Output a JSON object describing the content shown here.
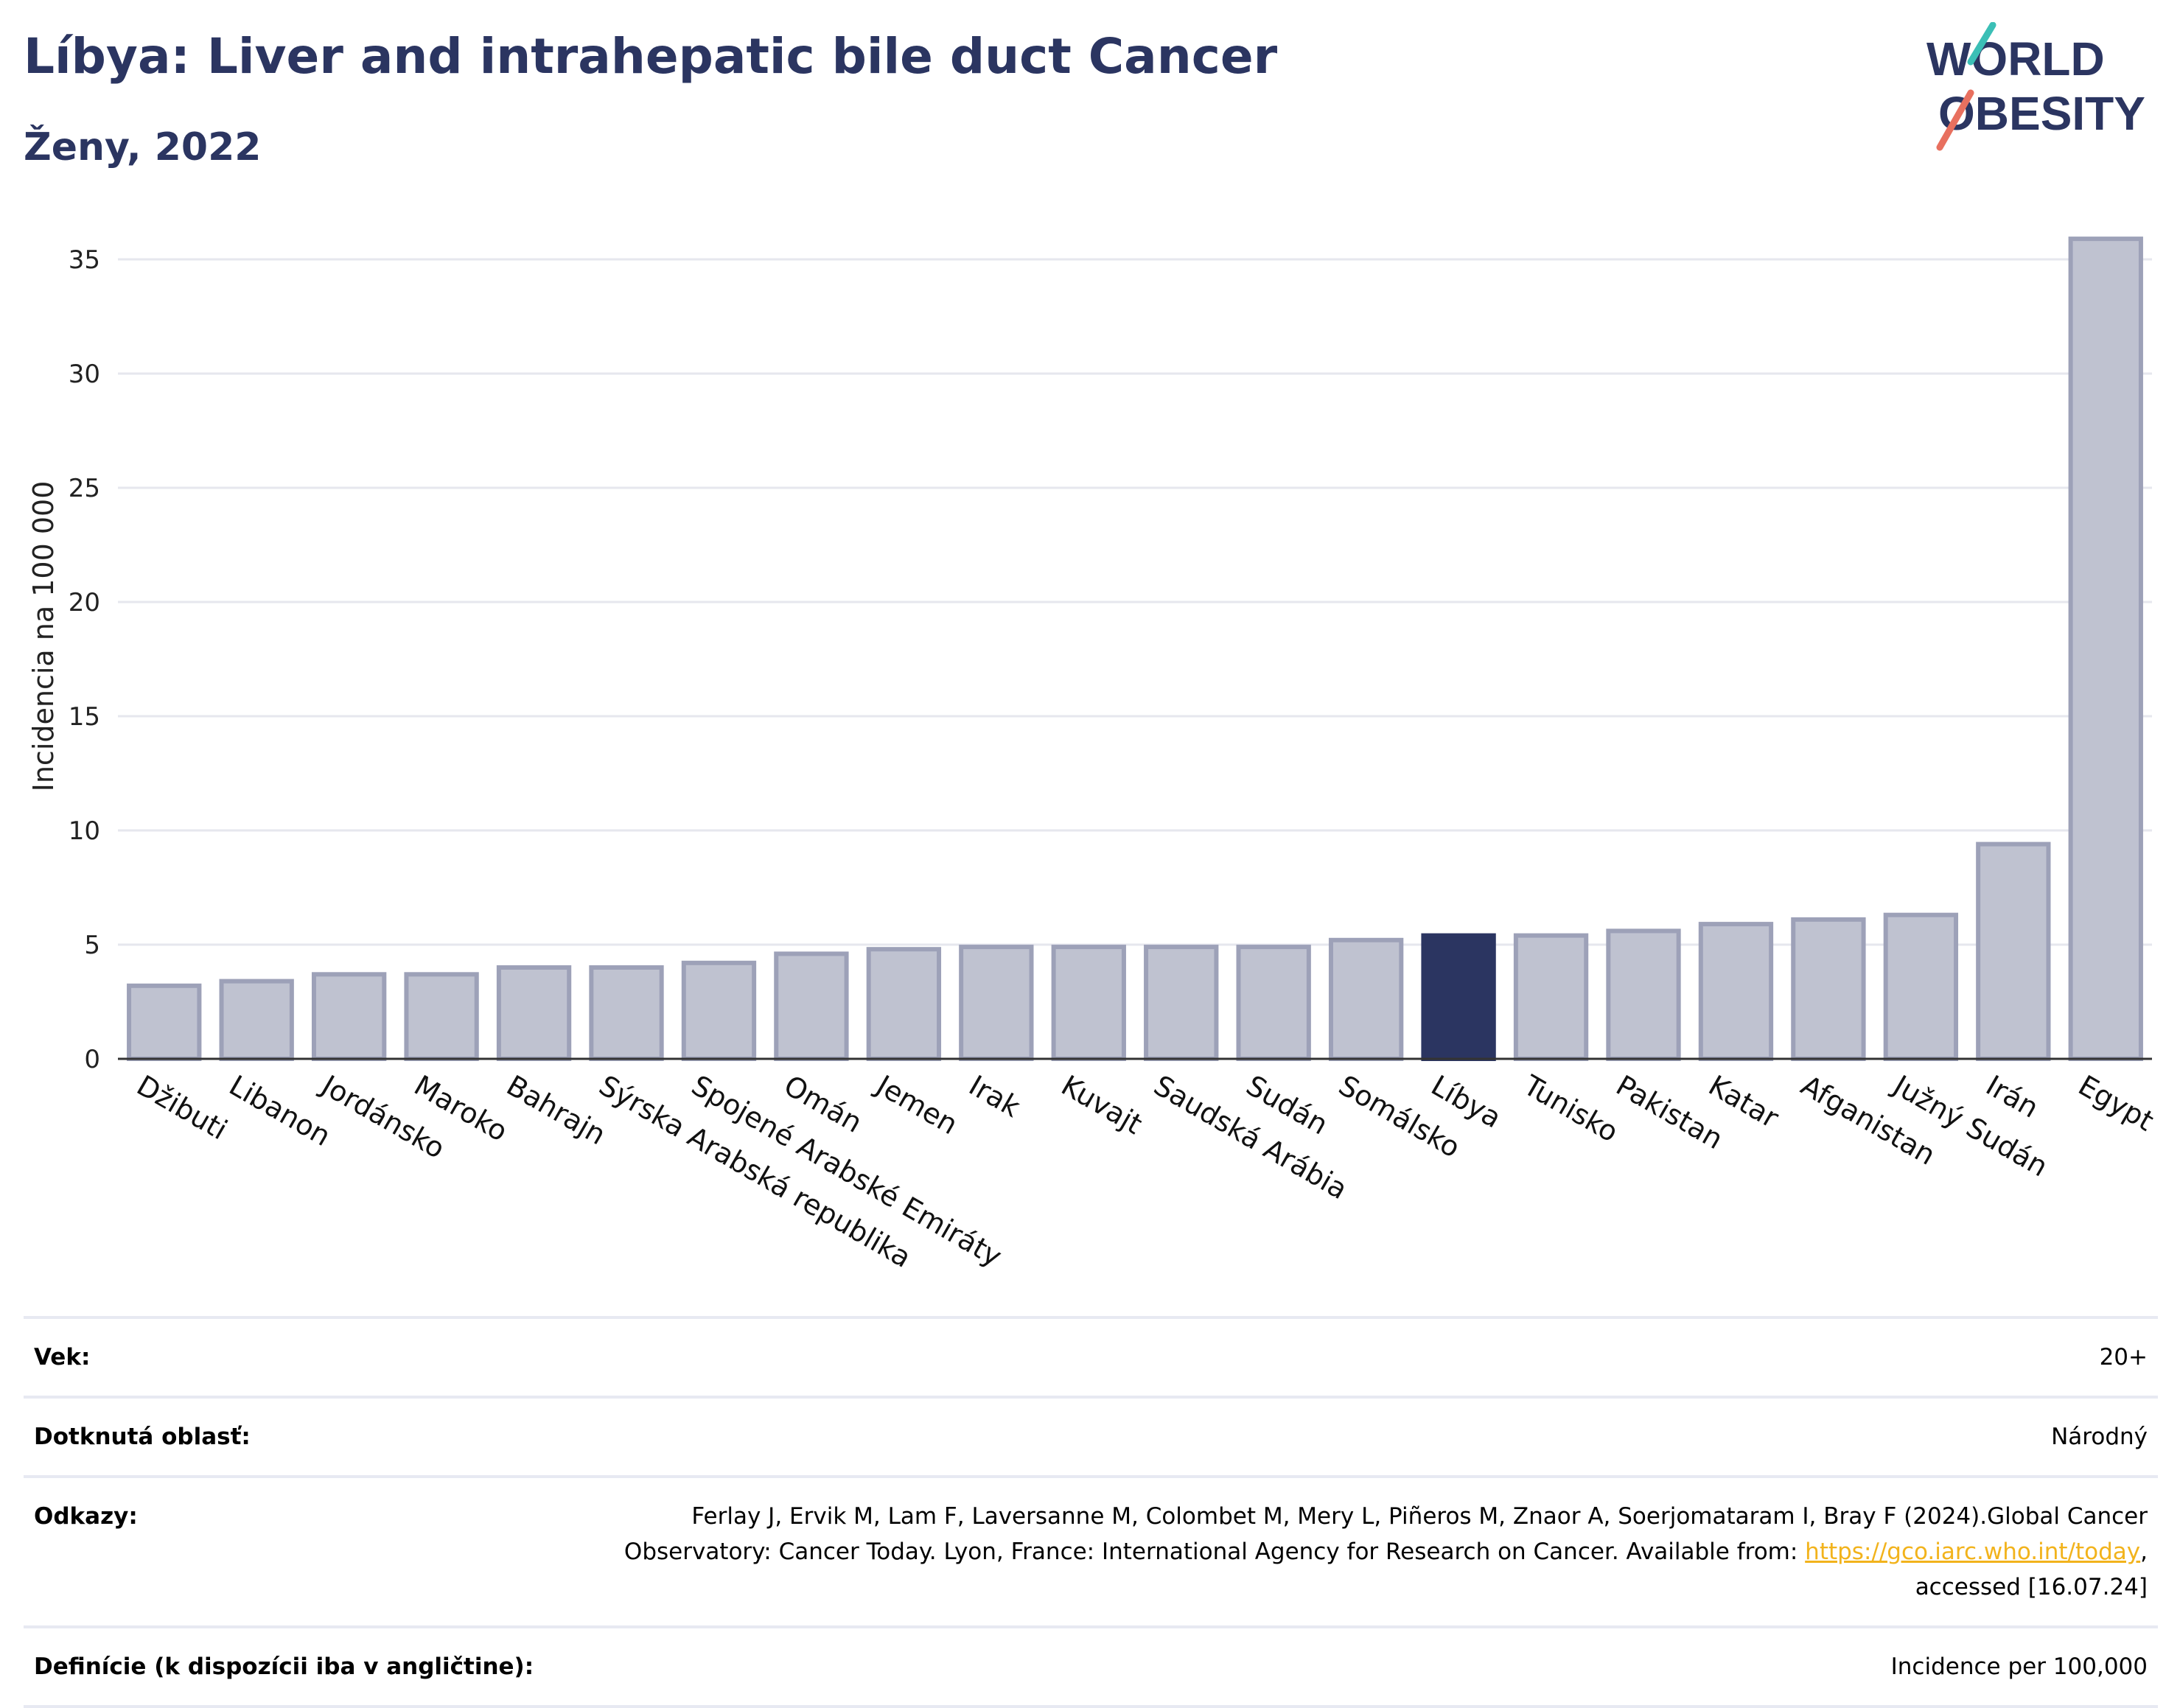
{
  "header": {
    "title": "Líbya: Liver and intrahepatic bile duct Cancer",
    "subtitle": "Ženy, 2022"
  },
  "logo": {
    "line1": "WORLD",
    "line2": "OBESITY",
    "colors": {
      "text": "#2b3561",
      "teal": "#3bbfb6",
      "coral": "#e8705f"
    }
  },
  "chart_data": {
    "type": "bar",
    "title": "Líbya: Liver and intrahepatic bile duct Cancer",
    "subtitle": "Ženy, 2022",
    "ylabel": "Incidencia na 100 000",
    "xlabel": "",
    "ylim": [
      0,
      37
    ],
    "yticks": [
      0,
      5,
      10,
      15,
      20,
      25,
      30,
      35
    ],
    "grid": true,
    "highlight": "Líbya",
    "colors": {
      "bar": "#bfc2d0",
      "bar_border": "#9da1b8",
      "highlight": "#2b3561",
      "grid": "#e6e7ee",
      "axis": "#333333"
    },
    "categories": [
      "Džibuti",
      "Libanon",
      "Jordánsko",
      "Maroko",
      "Bahrajn",
      "Sýrska Arabská republika",
      "Spojené Arabské Emiráty",
      "Omán",
      "Jemen",
      "Irak",
      "Kuvajt",
      "Saudská Arábia",
      "Sudán",
      "Somálsko",
      "Líbya",
      "Tunisko",
      "Pakistan",
      "Katar",
      "Afganistan",
      "Južný Sudán",
      "Irán",
      "Egypt"
    ],
    "values": [
      3.2,
      3.4,
      3.7,
      3.7,
      4.0,
      4.0,
      4.2,
      4.6,
      4.8,
      4.9,
      4.9,
      4.9,
      4.9,
      5.2,
      5.4,
      5.4,
      5.6,
      5.9,
      6.1,
      6.3,
      9.4,
      35.9
    ]
  },
  "footer": {
    "rows": [
      {
        "label": "Vek:",
        "value": "20+"
      },
      {
        "label": "Dotknutá oblasť:",
        "value": "Národný"
      },
      {
        "label": "Odkazy:",
        "value": "Ferlay J, Ervik M, Lam F, Laversanne M, Colombet M, Mery L, Piñeros M, Znaor A, Soerjomataram I, Bray F (2024).Global Cancer Observatory: Cancer Today. Lyon, France: International Agency for Research on Cancer. Available from: ",
        "link": "https://gco.iarc.who.int/today",
        "value_after": ", accessed [16.07.24]"
      },
      {
        "label": "Definície (k dispozícii iba v angličtine):",
        "value": "Incidence per 100,000"
      }
    ]
  }
}
